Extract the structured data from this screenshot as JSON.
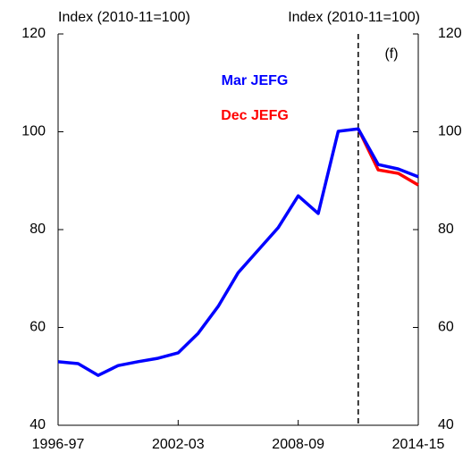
{
  "chart_data": {
    "type": "line",
    "y_label_left": "Index (2010-11=100)",
    "y_label_right": "Index (2010-11=100)",
    "annotation": "(f)",
    "categories": [
      "1996-97",
      null,
      null,
      null,
      null,
      null,
      "2002-03",
      null,
      null,
      null,
      null,
      null,
      "2008-09",
      null,
      null,
      null,
      null,
      null,
      "2014-15"
    ],
    "series": [
      {
        "name": "Mar JEFG",
        "color": "#0000ff",
        "values": [
          53.0,
          52.6,
          50.2,
          52.2,
          53.0,
          53.7,
          54.8,
          58.8,
          64.3,
          71.2,
          75.8,
          80.4,
          86.9,
          83.3,
          100.1,
          100.6,
          93.3,
          92.4,
          90.8
        ]
      },
      {
        "name": "Dec JEFG",
        "color": "#ff0000",
        "values": [
          null,
          null,
          null,
          null,
          null,
          null,
          null,
          null,
          null,
          null,
          null,
          null,
          null,
          null,
          null,
          100.6,
          92.2,
          91.5,
          89.1
        ]
      }
    ],
    "ylim": [
      40,
      120
    ],
    "yticks": [
      40,
      60,
      80,
      100,
      120
    ],
    "y2lim": [
      40,
      120
    ],
    "y2ticks": [
      40,
      60,
      80,
      100,
      120
    ]
  }
}
